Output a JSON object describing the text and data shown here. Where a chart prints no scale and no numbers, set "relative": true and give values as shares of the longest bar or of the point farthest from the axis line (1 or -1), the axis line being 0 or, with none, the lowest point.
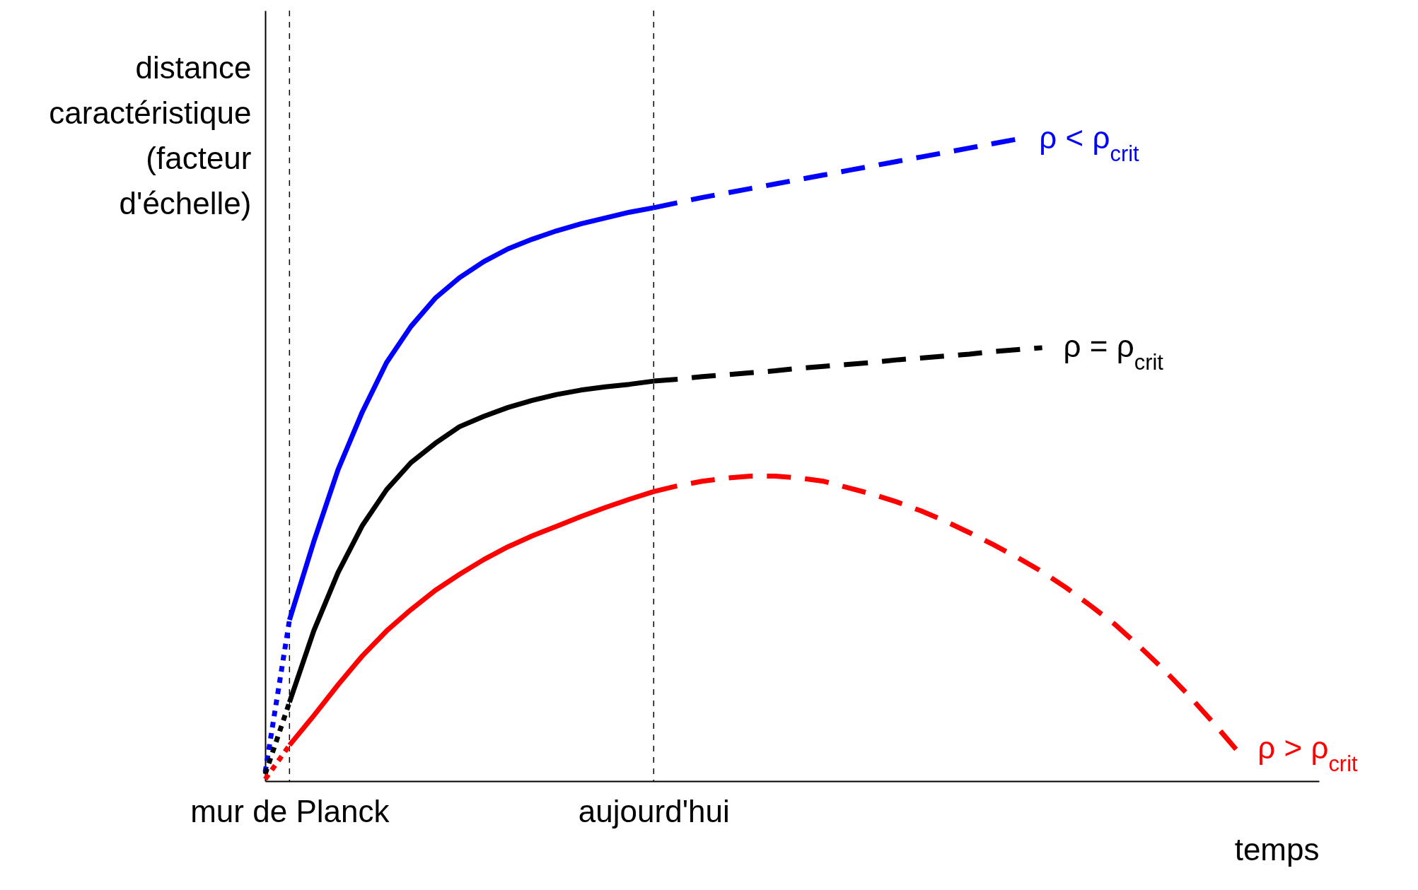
{
  "chart_data": {
    "type": "line",
    "relative": true,
    "xlabel": "temps",
    "ylabel": "distance caractéristique (facteur d'échelle)",
    "categories": [
      null,
      "mur de Planck",
      null,
      null,
      null,
      null,
      null,
      null,
      null,
      null,
      null,
      null,
      null,
      null,
      null,
      null,
      "aujourd'hui",
      null,
      null,
      null,
      null,
      null,
      null,
      null,
      null,
      null,
      null,
      null,
      null,
      null,
      null,
      null,
      null,
      null,
      null,
      null,
      null,
      null,
      null,
      null,
      null
    ],
    "ref_lines": [
      {
        "axis": "x",
        "value": "mur de Planck",
        "line_style": "dotted",
        "color": "#000000"
      },
      {
        "axis": "x",
        "value": "aujourd'hui",
        "line_style": "dotted",
        "color": "#000000"
      }
    ],
    "series": [
      {
        "color": "#0000ff",
        "line_style": "dotted",
        "values": [
          0.014,
          0.251,
          null,
          null,
          null,
          null,
          null,
          null,
          null,
          null,
          null,
          null,
          null,
          null,
          null,
          null,
          null,
          null,
          null,
          null,
          null,
          null,
          null,
          null,
          null,
          null,
          null,
          null,
          null,
          null,
          null,
          null,
          null,
          null,
          null,
          null,
          null,
          null,
          null,
          null,
          null
        ]
      },
      {
        "color": "#0000ff",
        "line_style": "solid",
        "values": [
          null,
          0.251,
          0.373,
          0.485,
          0.575,
          0.652,
          0.708,
          0.752,
          0.784,
          0.809,
          0.829,
          0.844,
          0.857,
          0.868,
          0.877,
          0.886,
          0.893,
          null,
          null,
          null,
          null,
          null,
          null,
          null,
          null,
          null,
          null,
          null,
          null,
          null,
          null,
          null,
          null,
          null,
          null,
          null,
          null,
          null,
          null,
          null,
          null
        ]
      },
      {
        "name": "ρ < ρ$_{crit}$",
        "color": "#0000ff",
        "line_style": "dashed",
        "values": [
          null,
          null,
          null,
          null,
          null,
          null,
          null,
          null,
          null,
          null,
          null,
          null,
          null,
          null,
          null,
          null,
          0.893,
          0.901,
          0.909,
          0.916,
          0.923,
          0.93,
          0.937,
          0.944,
          0.951,
          0.958,
          0.965,
          0.972,
          0.979,
          0.986,
          0.993,
          1.0,
          null,
          null,
          null,
          null,
          null,
          null,
          null,
          null,
          null
        ]
      },
      {
        "color": "#000000",
        "line_style": "dotted",
        "values": [
          0.011,
          0.123,
          null,
          null,
          null,
          null,
          null,
          null,
          null,
          null,
          null,
          null,
          null,
          null,
          null,
          null,
          null,
          null,
          null,
          null,
          null,
          null,
          null,
          null,
          null,
          null,
          null,
          null,
          null,
          null,
          null,
          null,
          null,
          null,
          null,
          null,
          null,
          null,
          null,
          null,
          null
        ]
      },
      {
        "color": "#000000",
        "line_style": "solid",
        "values": [
          null,
          0.123,
          0.234,
          0.325,
          0.398,
          0.454,
          0.496,
          0.526,
          0.552,
          0.568,
          0.582,
          0.593,
          0.602,
          0.609,
          0.614,
          0.618,
          0.623,
          null,
          null,
          null,
          null,
          null,
          null,
          null,
          null,
          null,
          null,
          null,
          null,
          null,
          null,
          null,
          null,
          null,
          null,
          null,
          null,
          null,
          null,
          null,
          null
        ]
      },
      {
        "name": "ρ = ρ$_{crit}$",
        "color": "#000000",
        "line_style": "dashed",
        "values": [
          null,
          null,
          null,
          null,
          null,
          null,
          null,
          null,
          null,
          null,
          null,
          null,
          null,
          null,
          null,
          null,
          0.623,
          0.626,
          0.63,
          0.633,
          0.636,
          0.639,
          0.643,
          0.646,
          0.649,
          0.652,
          0.656,
          0.659,
          0.662,
          0.665,
          0.669,
          0.672,
          0.675,
          null,
          null,
          null,
          null,
          null,
          null,
          null,
          null
        ]
      },
      {
        "color": "#ff0000",
        "line_style": "dotted",
        "values": [
          0.003,
          0.056,
          null,
          null,
          null,
          null,
          null,
          null,
          null,
          null,
          null,
          null,
          null,
          null,
          null,
          null,
          null,
          null,
          null,
          null,
          null,
          null,
          null,
          null,
          null,
          null,
          null,
          null,
          null,
          null,
          null,
          null,
          null,
          null,
          null,
          null,
          null,
          null,
          null,
          null,
          null
        ]
      },
      {
        "color": "#ff0000",
        "line_style": "solid",
        "values": [
          null,
          0.056,
          0.102,
          0.15,
          0.195,
          0.234,
          0.267,
          0.297,
          0.322,
          0.345,
          0.365,
          0.382,
          0.397,
          0.412,
          0.426,
          0.439,
          0.451,
          null,
          null,
          null,
          null,
          null,
          null,
          null,
          null,
          null,
          null,
          null,
          null,
          null,
          null,
          null,
          null,
          null,
          null,
          null,
          null,
          null,
          null,
          null,
          null
        ]
      },
      {
        "name": "ρ > ρ$_{crit}$",
        "color": "#ff0000",
        "line_style": "dashed",
        "values": [
          null,
          null,
          null,
          null,
          null,
          null,
          null,
          null,
          null,
          null,
          null,
          null,
          null,
          null,
          null,
          null,
          0.451,
          0.46,
          0.467,
          0.472,
          0.475,
          0.475,
          0.472,
          0.467,
          0.457,
          0.447,
          0.435,
          0.421,
          0.405,
          0.387,
          0.368,
          0.348,
          0.326,
          0.301,
          0.273,
          0.244,
          0.21,
          0.174,
          0.135,
          0.093,
          0.049
        ]
      }
    ]
  }
}
